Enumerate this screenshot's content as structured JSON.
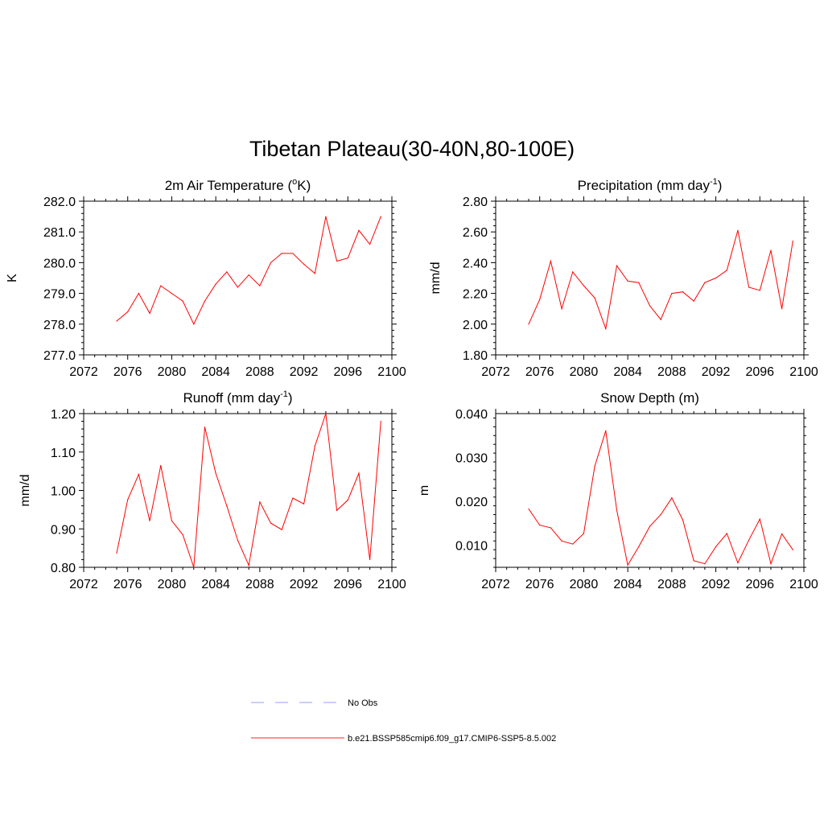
{
  "figure": {
    "title": "Tibetan Plateau(30-40N,80-100E)"
  },
  "legend": {
    "entries": [
      {
        "label": "No Obs",
        "color": "#9a9aff",
        "style": "dashed"
      },
      {
        "label": "b.e21.BSSP585cmip6.f09_g17.CMIP6-SSP5-8.5.002",
        "color": "#ff2020",
        "style": "solid"
      }
    ]
  },
  "chart_data": [
    {
      "type": "line",
      "title": "2m Air Temperature (°K)",
      "title_base": "2m Air Temperature (",
      "title_sup": "o",
      "title_after": "K)",
      "ylabel": "K",
      "xlim": [
        2072,
        2100
      ],
      "ylim": [
        277.0,
        282.0
      ],
      "xticks": [
        2072,
        2076,
        2080,
        2084,
        2088,
        2092,
        2096,
        2100
      ],
      "yticks": [
        277.0,
        278.0,
        279.0,
        280.0,
        281.0,
        282.0
      ],
      "ytick_labels": [
        "277.0",
        "278.0",
        "279.0",
        "280.0",
        "281.0",
        "282.0"
      ],
      "color": "#ff0000",
      "series": [
        {
          "x": [
            2075,
            2076,
            2077,
            2078,
            2079,
            2080,
            2081,
            2082,
            2083,
            2084,
            2085,
            2086,
            2087,
            2088,
            2089,
            2090,
            2091,
            2092,
            2093,
            2094,
            2095,
            2096,
            2097,
            2098,
            2099
          ],
          "values": [
            278.1,
            278.4,
            279.0,
            278.35,
            279.25,
            279.0,
            278.75,
            278.0,
            278.75,
            279.3,
            279.7,
            279.2,
            279.6,
            279.25,
            280.0,
            280.3,
            280.3,
            279.95,
            279.65,
            281.5,
            280.05,
            280.15,
            281.05,
            280.6,
            281.5
          ]
        }
      ]
    },
    {
      "type": "line",
      "title": "Precipitation (mm day-1)",
      "title_base": "Precipitation (mm day",
      "title_sup": "-1",
      "title_after": ")",
      "ylabel": "mm/d",
      "xlim": [
        2072,
        2100
      ],
      "ylim": [
        1.8,
        2.8
      ],
      "xticks": [
        2072,
        2076,
        2080,
        2084,
        2088,
        2092,
        2096,
        2100
      ],
      "yticks": [
        1.8,
        2.0,
        2.2,
        2.4,
        2.6,
        2.8
      ],
      "ytick_labels": [
        "1.80",
        "2.00",
        "2.20",
        "2.40",
        "2.60",
        "2.80"
      ],
      "color": "#ff0000",
      "series": [
        {
          "x": [
            2075,
            2076,
            2077,
            2078,
            2079,
            2080,
            2081,
            2082,
            2083,
            2084,
            2085,
            2086,
            2087,
            2088,
            2089,
            2090,
            2091,
            2092,
            2093,
            2094,
            2095,
            2096,
            2097,
            2098,
            2099
          ],
          "values": [
            2.0,
            2.16,
            2.41,
            2.1,
            2.34,
            2.25,
            2.17,
            1.97,
            2.38,
            2.28,
            2.27,
            2.12,
            2.03,
            2.2,
            2.21,
            2.15,
            2.27,
            2.3,
            2.35,
            2.61,
            2.24,
            2.22,
            2.48,
            2.1,
            2.54
          ]
        }
      ]
    },
    {
      "type": "line",
      "title": "Runoff (mm day-1)",
      "title_base": "Runoff (mm day",
      "title_sup": "-1",
      "title_after": ")",
      "ylabel": "mm/d",
      "xlim": [
        2072,
        2100
      ],
      "ylim": [
        0.8,
        1.2
      ],
      "xticks": [
        2072,
        2076,
        2080,
        2084,
        2088,
        2092,
        2096,
        2100
      ],
      "yticks": [
        0.8,
        0.9,
        1.0,
        1.1,
        1.2
      ],
      "ytick_labels": [
        "0.80",
        "0.90",
        "1.00",
        "1.10",
        "1.20"
      ],
      "color": "#ff0000",
      "series": [
        {
          "x": [
            2075,
            2076,
            2077,
            2078,
            2079,
            2080,
            2081,
            2082,
            2083,
            2084,
            2085,
            2086,
            2087,
            2088,
            2089,
            2090,
            2091,
            2092,
            2093,
            2094,
            2095,
            2096,
            2097,
            2098,
            2099
          ],
          "values": [
            0.837,
            0.976,
            1.042,
            0.921,
            1.065,
            0.921,
            0.885,
            0.8,
            1.165,
            1.045,
            0.96,
            0.87,
            0.805,
            0.97,
            0.915,
            0.898,
            0.98,
            0.965,
            1.115,
            1.2,
            0.948,
            0.975,
            1.045,
            0.82,
            1.18
          ]
        }
      ]
    },
    {
      "type": "line",
      "title": "Snow Depth (m)",
      "title_base": "Snow Depth (m)",
      "title_sup": "",
      "title_after": "",
      "ylabel": "m",
      "xlim": [
        2072,
        2100
      ],
      "ylim": [
        0.005,
        0.04
      ],
      "xticks": [
        2072,
        2076,
        2080,
        2084,
        2088,
        2092,
        2096,
        2100
      ],
      "yticks": [
        0.01,
        0.02,
        0.03,
        0.04
      ],
      "ytick_labels": [
        "0.010",
        "0.020",
        "0.030",
        "0.040"
      ],
      "color": "#ff0000",
      "series": [
        {
          "x": [
            2075,
            2076,
            2077,
            2078,
            2079,
            2080,
            2081,
            2082,
            2083,
            2084,
            2085,
            2086,
            2087,
            2088,
            2089,
            2090,
            2091,
            2092,
            2093,
            2094,
            2095,
            2096,
            2097,
            2098,
            2099
          ],
          "values": [
            0.0183,
            0.0146,
            0.014,
            0.011,
            0.0103,
            0.0127,
            0.028,
            0.0361,
            0.018,
            0.0055,
            0.0097,
            0.0143,
            0.017,
            0.0208,
            0.0158,
            0.0065,
            0.0058,
            0.0097,
            0.0127,
            0.006,
            0.0112,
            0.016,
            0.0058,
            0.0126,
            0.009
          ]
        }
      ]
    }
  ]
}
